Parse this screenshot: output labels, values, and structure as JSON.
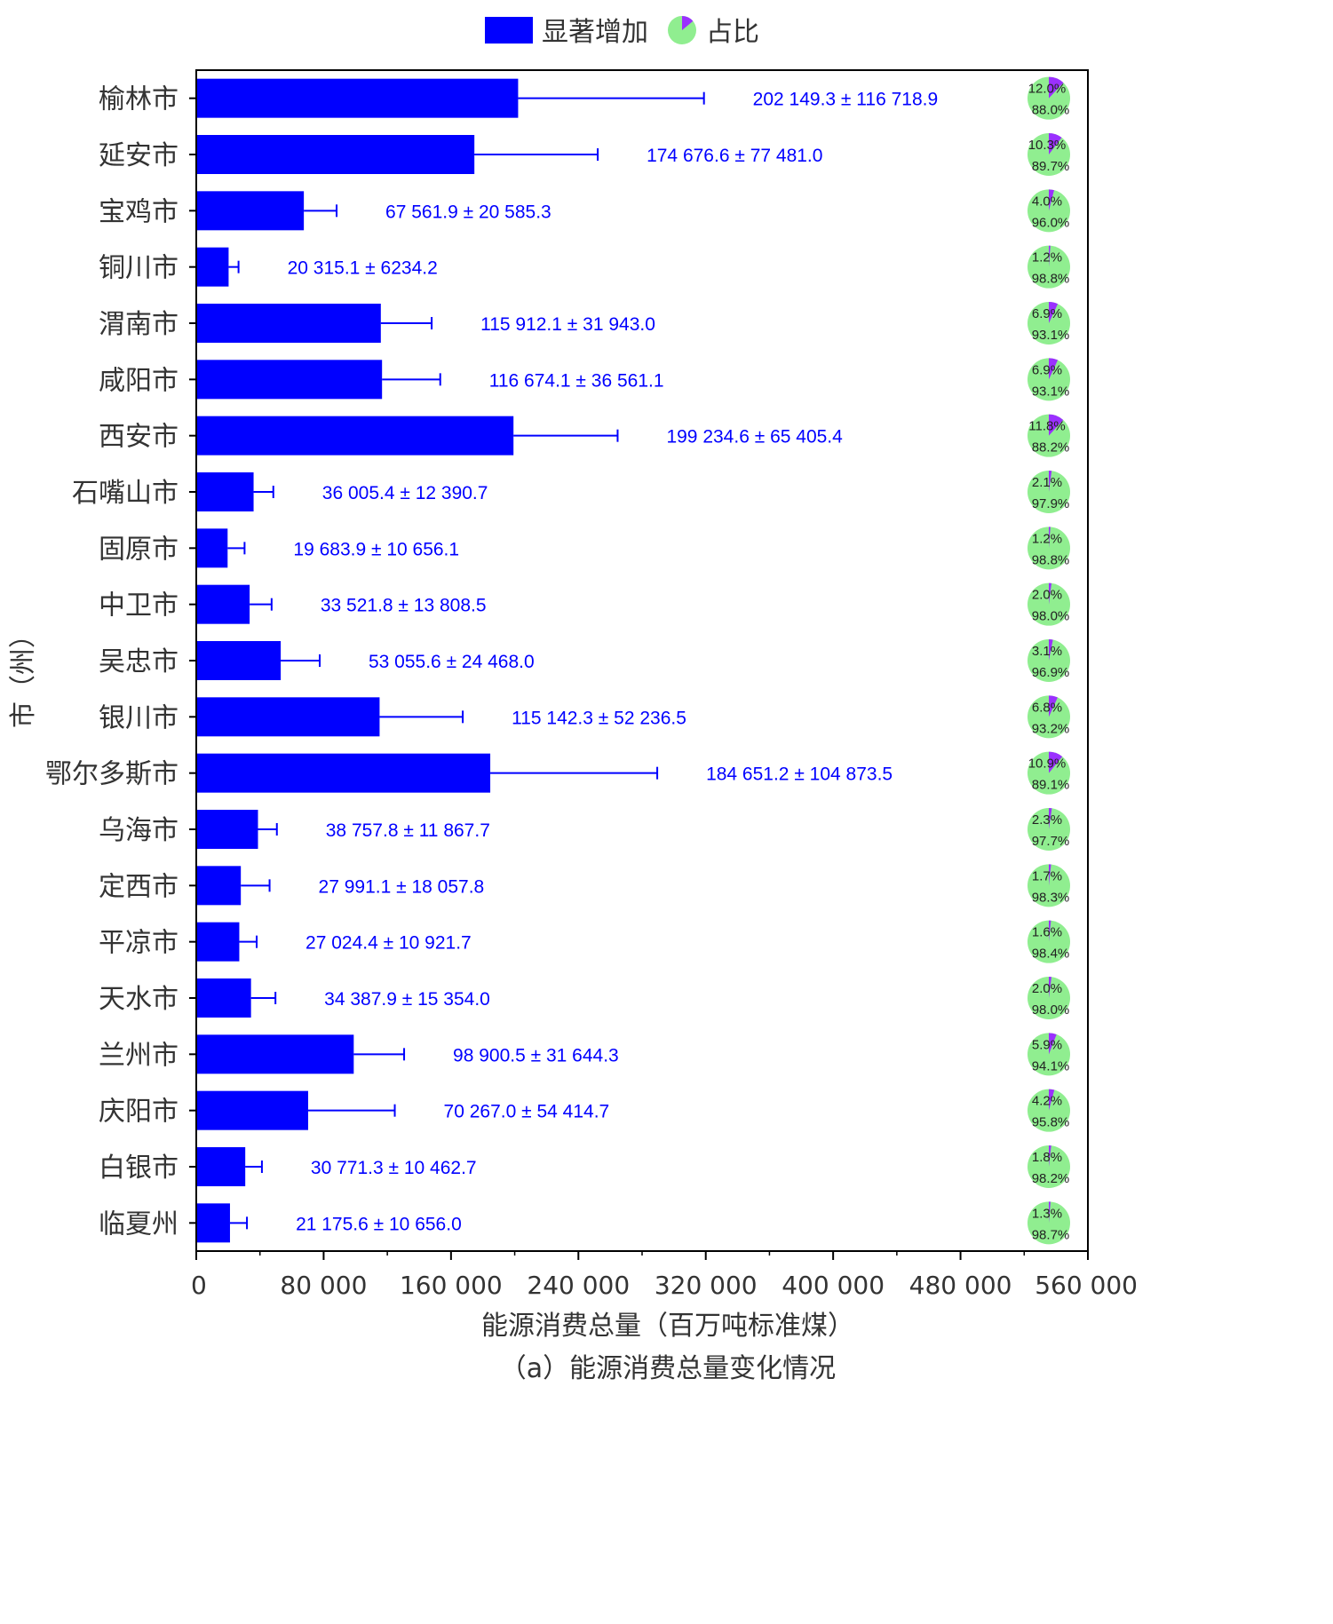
{
  "legend": {
    "bar_label": "显著增加",
    "pie_label": "占比"
  },
  "colors": {
    "bar": "#0000ff",
    "error": "#0000ff",
    "value_text": "#0000ff",
    "pie_main": "#90ee90",
    "pie_share": "#9b30ff"
  },
  "caption": "（a）能源消费总量变化情况",
  "chart_data": {
    "type": "bar",
    "orientation": "horizontal",
    "xlabel": "能源消费总量（百万吨标准煤）",
    "ylabel": "市（州）",
    "xlim": [
      0,
      560000
    ],
    "xticks": [
      0,
      80000,
      160000,
      240000,
      320000,
      400000,
      480000,
      560000
    ],
    "xtick_labels": [
      "0",
      "80 000",
      "160 000",
      "240 000",
      "320 000",
      "400 000",
      "480 000",
      "560 000"
    ],
    "categories": [
      "榆林市",
      "延安市",
      "宝鸡市",
      "铜川市",
      "渭南市",
      "咸阳市",
      "西安市",
      "石嘴山市",
      "固原市",
      "中卫市",
      "吴忠市",
      "银川市",
      "鄂尔多斯市",
      "乌海市",
      "定西市",
      "平凉市",
      "天水市",
      "兰州市",
      "庆阳市",
      "白银市",
      "临夏州"
    ],
    "values": [
      202149.3,
      174676.6,
      67561.9,
      20315.1,
      115912.1,
      116674.1,
      199234.6,
      36005.4,
      19683.9,
      33521.8,
      53055.6,
      115142.3,
      184651.2,
      38757.8,
      27991.1,
      27024.4,
      34387.9,
      98900.5,
      70267.0,
      30771.3,
      21175.6
    ],
    "errors": [
      116718.9,
      77481.0,
      20585.3,
      6234.2,
      31943.0,
      36561.1,
      65405.4,
      12390.7,
      10656.1,
      13808.5,
      24468.0,
      52236.5,
      104873.5,
      11867.7,
      18057.8,
      10921.7,
      15354.0,
      31644.3,
      54414.7,
      10462.7,
      10656.0
    ],
    "value_labels": [
      "202 149.3 ± 116 718.9",
      "174 676.6 ± 77 481.0",
      "67 561.9 ± 20 585.3",
      "20 315.1 ± 6234.2",
      "115 912.1 ± 31 943.0",
      "116 674.1 ± 36 561.1",
      "199 234.6 ± 65 405.4",
      "36 005.4 ± 12 390.7",
      "19 683.9 ± 10 656.1",
      "33 521.8 ± 13 808.5",
      "53 055.6 ± 24 468.0",
      "115 142.3 ± 52 236.5",
      "184 651.2 ± 104 873.5",
      "38 757.8 ± 11 867.7",
      "27 991.1 ± 18 057.8",
      "27 024.4 ± 10 921.7",
      "34 387.9 ± 15 354.0",
      "98 900.5 ± 31 644.3",
      "70 267.0 ± 54 414.7",
      "30 771.3 ± 10 462.7",
      "21 175.6 ± 10 656.0"
    ],
    "share_pct": [
      12.0,
      10.3,
      4.0,
      1.2,
      6.9,
      6.9,
      11.8,
      2.1,
      1.2,
      2.0,
      3.1,
      6.8,
      10.9,
      2.3,
      1.7,
      1.6,
      2.0,
      5.9,
      4.2,
      1.8,
      1.3
    ],
    "share_labels": [
      "12.0%",
      "10.3%",
      "4.0%",
      "1.2%",
      "6.9%",
      "6.9%",
      "11.8%",
      "2.1%",
      "1.2%",
      "2.0%",
      "3.1%",
      "6.8%",
      "10.9%",
      "2.3%",
      "1.7%",
      "1.6%",
      "2.0%",
      "5.9%",
      "4.2%",
      "1.8%",
      "1.3%"
    ],
    "rest_labels": [
      "88.0%",
      "89.7%",
      "96.0%",
      "98.8%",
      "93.1%",
      "93.1%",
      "88.2%",
      "97.9%",
      "98.8%",
      "98.0%",
      "96.9%",
      "93.2%",
      "89.1%",
      "97.7%",
      "98.3%",
      "98.4%",
      "98.0%",
      "94.1%",
      "95.8%",
      "98.2%",
      "98.7%"
    ],
    "legend_position": "top-center",
    "grid": false
  }
}
